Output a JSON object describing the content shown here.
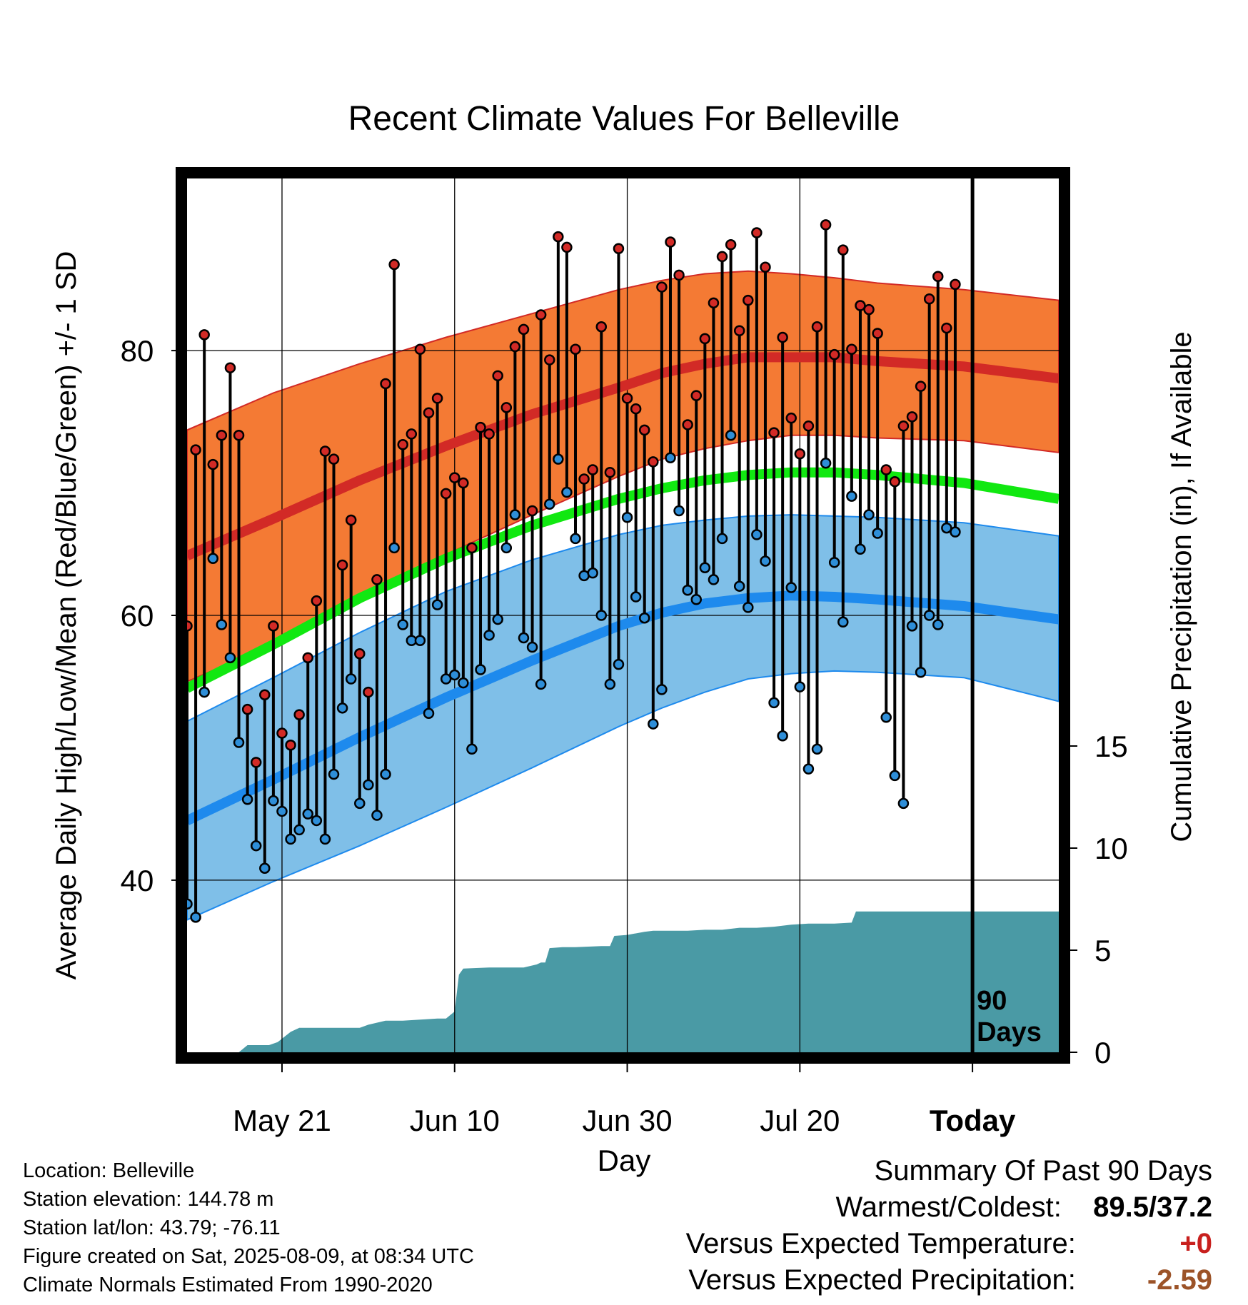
{
  "chart_data": {
    "type": "line",
    "title": "Recent Climate Values For Belleville",
    "xlabel": "Day",
    "ylabel": "Average Daily High/Low/Mean (Red/Blue/Green) +/- 1 SD",
    "y2label": "Cumulative Precipitation (in), If Available",
    "x_ticks": [
      "May 21",
      "Jun 10",
      "Jun 30",
      "Jul 20",
      "Today"
    ],
    "x_tick_days": [
      11,
      31,
      51,
      71,
      91
    ],
    "today_day": 91,
    "today_label": [
      "90",
      "Days"
    ],
    "ylim": [
      27,
      93
    ],
    "y_ticks": [
      40,
      60,
      80
    ],
    "y_minor_ticks": [
      30,
      50,
      70,
      90
    ],
    "y2lim": [
      0,
      42.8
    ],
    "y2_ticks": [
      0,
      5,
      10,
      15
    ],
    "day_range": [
      0,
      101
    ],
    "grid": true,
    "normals": {
      "days": [
        0,
        10,
        20,
        30,
        40,
        50,
        55,
        60,
        65,
        70,
        75,
        80,
        90,
        101
      ],
      "high_mean": [
        64.5,
        67.3,
        70.2,
        72.8,
        75.2,
        77.2,
        78.3,
        79.0,
        79.5,
        79.5,
        79.5,
        79.2,
        78.8,
        77.9
      ],
      "high_upper": [
        74.0,
        76.8,
        79.0,
        81.0,
        82.8,
        84.6,
        85.3,
        85.8,
        86.0,
        85.8,
        85.5,
        85.1,
        84.6,
        83.8
      ],
      "high_lower": [
        55.0,
        57.8,
        61.4,
        64.6,
        67.6,
        70.5,
        71.8,
        72.6,
        73.2,
        73.6,
        73.6,
        73.4,
        73.2,
        72.3
      ],
      "mean": [
        54.5,
        57.8,
        61.3,
        64.3,
        66.8,
        68.8,
        69.6,
        70.2,
        70.6,
        70.8,
        70.8,
        70.6,
        70.0,
        68.8
      ],
      "low_mean": [
        44.5,
        47.6,
        50.8,
        53.8,
        56.6,
        59.2,
        60.2,
        60.9,
        61.3,
        61.5,
        61.4,
        61.2,
        60.7,
        59.7
      ],
      "low_upper": [
        52.0,
        55.3,
        58.7,
        61.8,
        64.2,
        66.1,
        66.8,
        67.2,
        67.5,
        67.6,
        67.5,
        67.4,
        67.0,
        66.0
      ],
      "low_lower": [
        37.0,
        39.9,
        42.6,
        45.5,
        48.5,
        51.6,
        53.0,
        54.2,
        55.2,
        55.6,
        55.8,
        55.7,
        55.3,
        53.5
      ]
    },
    "daily": {
      "start_day": 0,
      "high": [
        59.2,
        72.5,
        81.2,
        71.4,
        73.6,
        78.7,
        73.6,
        52.9,
        48.9,
        54.0,
        59.2,
        51.1,
        50.2,
        52.5,
        56.8,
        61.1,
        72.4,
        71.8,
        63.8,
        67.2,
        57.1,
        54.2,
        62.7,
        77.5,
        86.5,
        72.9,
        73.7,
        80.1,
        75.3,
        76.4,
        69.2,
        70.4,
        70.0,
        65.1,
        74.2,
        73.7,
        78.1,
        75.7,
        80.3,
        81.6,
        67.9,
        82.7,
        79.3,
        88.6,
        87.8,
        80.1,
        70.3,
        71.0,
        81.8,
        70.8,
        87.7,
        76.4,
        75.6,
        74.0,
        71.6,
        84.8,
        88.2,
        85.7,
        74.4,
        76.6,
        80.9,
        83.6,
        87.1,
        88.0,
        81.5,
        83.8,
        88.9,
        86.3,
        73.8,
        81.0,
        74.9,
        72.2,
        74.3,
        81.8,
        89.5,
        79.7,
        87.6,
        80.1,
        83.4,
        83.1,
        81.3,
        71.0,
        70.1,
        74.3,
        75.0,
        77.3,
        83.9,
        85.6,
        81.7,
        85.0
      ],
      "low": [
        38.2,
        37.2,
        54.2,
        64.3,
        59.3,
        56.8,
        50.4,
        46.1,
        42.6,
        40.9,
        46.0,
        45.2,
        43.1,
        43.8,
        45.0,
        44.5,
        43.1,
        48.0,
        53.0,
        55.2,
        45.8,
        47.2,
        44.9,
        48.0,
        65.1,
        59.3,
        58.1,
        58.1,
        52.6,
        60.8,
        55.2,
        55.5,
        54.9,
        49.9,
        55.9,
        58.5,
        59.7,
        65.1,
        67.6,
        58.3,
        57.6,
        54.8,
        68.4,
        71.8,
        69.3,
        65.8,
        63.0,
        63.2,
        60.0,
        54.8,
        56.3,
        67.4,
        61.4,
        59.8,
        51.8,
        54.4,
        71.9,
        67.9,
        61.9,
        61.2,
        63.6,
        62.7,
        65.8,
        73.6,
        62.2,
        60.6,
        66.1,
        64.1,
        53.4,
        50.9,
        62.1,
        54.6,
        48.4,
        49.9,
        71.5,
        64.0,
        59.5,
        69.0,
        65.0,
        67.6,
        66.2,
        52.3,
        47.9,
        45.8,
        59.2,
        55.7,
        60.0,
        59.3,
        66.6,
        66.3
      ]
    },
    "precip": {
      "days": [
        0,
        6,
        7,
        9.5,
        10.5,
        12,
        13,
        14.5,
        16,
        17,
        19,
        20,
        21,
        23,
        25,
        27,
        29,
        30,
        31,
        31.5,
        32,
        35,
        37,
        39,
        40.5,
        41,
        41.5,
        42,
        43.5,
        45,
        48,
        49,
        49.5,
        51,
        53,
        54,
        56,
        58,
        60,
        62,
        64,
        66,
        68,
        70,
        72,
        73,
        75,
        77,
        77.5,
        78,
        80,
        82,
        84,
        86,
        88,
        90,
        91,
        101
      ],
      "values": [
        0,
        0,
        0.35,
        0.35,
        0.5,
        1.0,
        1.2,
        1.2,
        1.2,
        1.2,
        1.2,
        1.2,
        1.35,
        1.55,
        1.55,
        1.6,
        1.65,
        1.65,
        2.0,
        3.8,
        4.1,
        4.15,
        4.15,
        4.15,
        4.3,
        4.4,
        4.4,
        5.1,
        5.15,
        5.15,
        5.2,
        5.2,
        5.7,
        5.75,
        5.9,
        5.95,
        5.95,
        5.95,
        6.0,
        6.0,
        6.1,
        6.1,
        6.15,
        6.25,
        6.3,
        6.3,
        6.3,
        6.35,
        6.9,
        6.9,
        6.9,
        6.9,
        6.9,
        6.9,
        6.9,
        6.9,
        6.9,
        6.9
      ]
    },
    "colors": {
      "high_band": "#f47a34",
      "high_line": "#d22a26",
      "low_band": "#7fbfe8",
      "low_line": "#1e8aed",
      "mean_line": "#11e811",
      "precip_fill": "#4a9aa5",
      "high_dot": "#d22a26",
      "low_dot": "#2e8ed8",
      "stem": "#000000",
      "frame": "#000000"
    }
  },
  "footer": {
    "location": "Location: Belleville",
    "elevation": "Station elevation: 144.78 m",
    "latlon": "Station lat/lon: 43.79; -76.11",
    "created": "Figure created on Sat, 2025-08-09, at 08:34 UTC",
    "normals": "Climate Normals Estimated From 1990-2020"
  },
  "summary": {
    "heading": "Summary Of Past 90 Days",
    "warmest_label": "Warmest/Coldest:",
    "warmest_value": "89.5/37.2",
    "temp_label": "Versus Expected Temperature:",
    "temp_value": "+0",
    "temp_color": "#c8201e",
    "precip_label": "Versus Expected Precipitation:",
    "precip_value": "-2.59",
    "precip_color": "#9c5328"
  }
}
